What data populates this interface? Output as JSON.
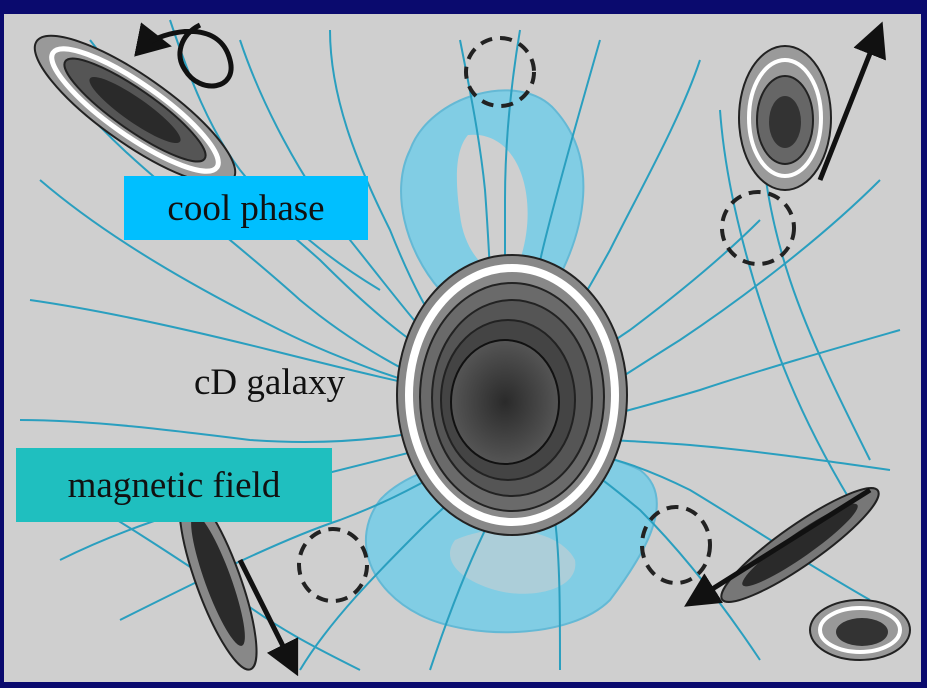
{
  "labels": {
    "cool_phase": "cool phase",
    "cd_galaxy": "cD galaxy",
    "magnetic_field": "magnetic field"
  },
  "colors": {
    "border": "#0a0a6e",
    "background": "#cfcfcf",
    "field_lines": "#2a9fbf",
    "cool_gas": "#7dcde6",
    "cool_phase_box": "#00bfff",
    "magnetic_field_box": "#1fbfbf",
    "galaxy_core": "#333333"
  },
  "icons": [
    "arrow-icon",
    "bubble-icon",
    "galaxy-icon"
  ]
}
